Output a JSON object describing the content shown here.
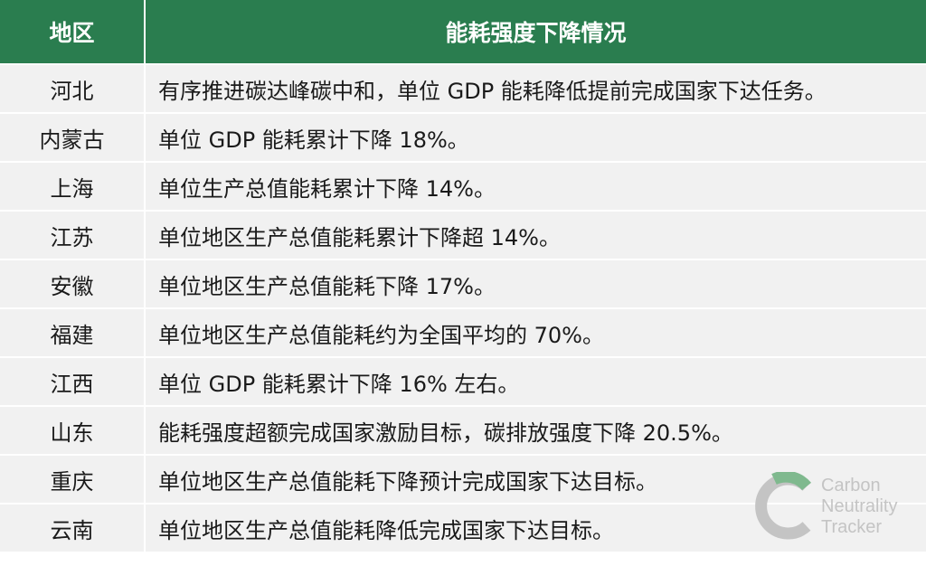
{
  "table": {
    "headers": [
      "地区",
      "能耗强度下降情况"
    ],
    "rows": [
      {
        "region": "河北",
        "desc": "有序推进碳达峰碳中和，单位 GDP 能耗降低提前完成国家下达任务。"
      },
      {
        "region": "内蒙古",
        "desc": "单位 GDP 能耗累计下降 18%。"
      },
      {
        "region": "上海",
        "desc": "单位生产总值能耗累计下降 14%。"
      },
      {
        "region": "江苏",
        "desc": "单位地区生产总值能耗累计下降超 14%。"
      },
      {
        "region": "安徽",
        "desc": "单位地区生产总值能耗下降 17%。"
      },
      {
        "region": "福建",
        "desc": "单位地区生产总值能耗约为全国平均的 70%。"
      },
      {
        "region": "江西",
        "desc": "单位 GDP 能耗累计下降 16% 左右。"
      },
      {
        "region": "山东",
        "desc": "能耗强度超额完成国家激励目标，碳排放强度下降 20.5%。"
      },
      {
        "region": "重庆",
        "desc": "单位地区生产总值能耗下降预计完成国家下达目标。"
      },
      {
        "region": "云南",
        "desc": "单位地区生产总值能耗降低完成国家下达目标。"
      }
    ]
  },
  "watermark": {
    "line1": "Carbon",
    "line2": "Neutrality",
    "line3": "Tracker",
    "icon": "carbon-neutrality-tracker-logo-icon"
  },
  "colors": {
    "header_bg": "#2a7d4f",
    "header_text": "#ffffff",
    "row_bg": "#f1f1f1",
    "logo_gray": "#c4c4c4",
    "logo_green": "#7fb98e"
  }
}
